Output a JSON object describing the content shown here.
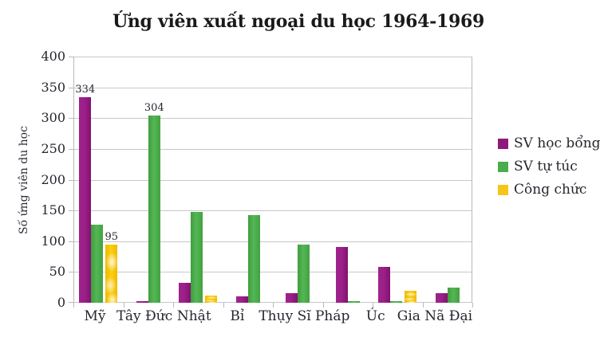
{
  "title": "Ứng viên xuất ngoại du học 1964-1969",
  "colors": {
    "series_purple": "#8E1A7C",
    "series_green": "#4AAC4A",
    "series_yellow": "#F5C518",
    "gridline": "#c8c8c8",
    "axis": "#b9b9b9",
    "text": "#26262f"
  },
  "chart_data": {
    "type": "bar",
    "title": "Ứng viên xuất ngoại du học 1964-1969",
    "xlabel": "",
    "ylabel": "Số ứng viên du học",
    "ylim": [
      0,
      400
    ],
    "yticks": [
      0,
      50,
      100,
      150,
      200,
      250,
      300,
      350,
      400
    ],
    "grid": true,
    "legend_position": "right",
    "categories": [
      "Mỹ",
      "Tây Đức",
      "Nhật",
      "Bỉ",
      "Thụy Sĩ",
      "Pháp",
      "Úc",
      "Gia Nã Đại"
    ],
    "series": [
      {
        "name": "SV học bổng",
        "color": "#8E1A7C",
        "values": [
          334,
          2,
          33,
          11,
          15,
          90,
          58,
          16
        ],
        "point_labels": [
          "334",
          "",
          "",
          "",
          "",
          "",
          "",
          ""
        ]
      },
      {
        "name": "SV tự túc",
        "color": "#4AAC4A",
        "values": [
          127,
          304,
          148,
          142,
          95,
          2,
          2,
          25
        ],
        "point_labels": [
          "",
          "304",
          "",
          "",
          "",
          "",
          "",
          ""
        ]
      },
      {
        "name": "Công chức",
        "color": "#F5C518",
        "values": [
          95,
          0,
          12,
          0,
          0,
          0,
          20,
          0
        ],
        "point_labels": [
          "95",
          "",
          "",
          "",
          "",
          "",
          "",
          ""
        ]
      }
    ]
  }
}
